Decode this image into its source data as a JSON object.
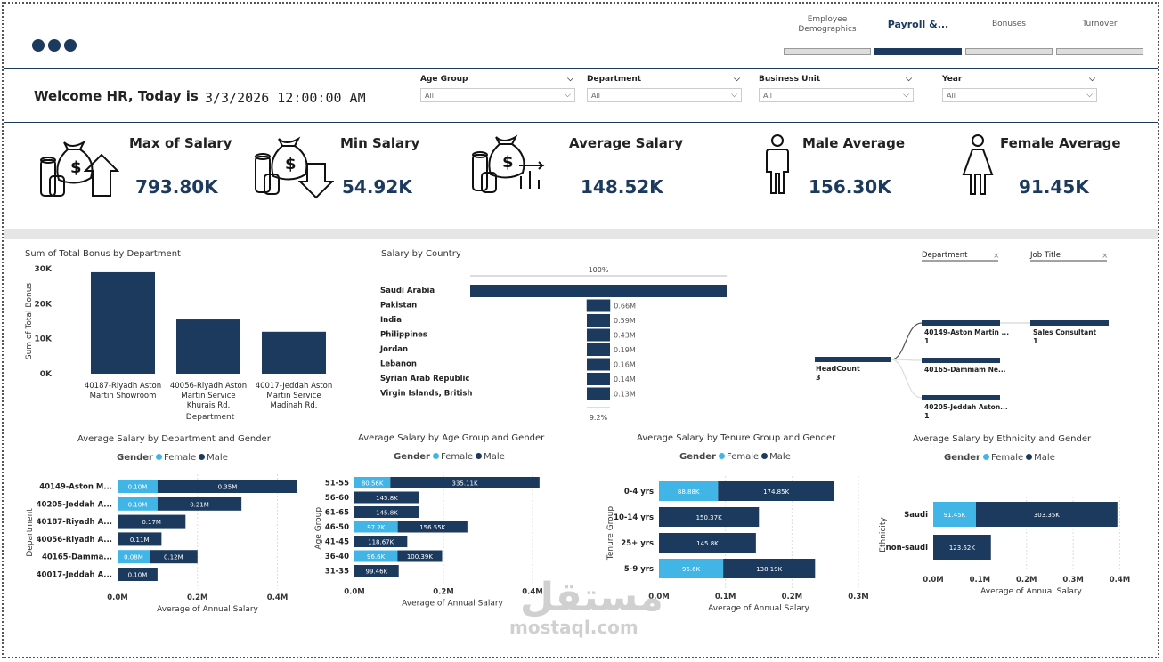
{
  "tabs": [
    {
      "label": "Employee\nDemographics",
      "active": false
    },
    {
      "label": "Payroll &...",
      "active": true
    },
    {
      "label": "Bonuses",
      "active": false
    },
    {
      "label": "Turnover",
      "active": false
    }
  ],
  "header": {
    "welcome": "Welcome HR, Today is",
    "datetime": "3/3/2026 12:00:00 AM"
  },
  "filters": [
    {
      "label": "Age Group",
      "value": "All"
    },
    {
      "label": "Department",
      "value": "All"
    },
    {
      "label": "Business Unit",
      "value": "All"
    },
    {
      "label": "Year",
      "value": "All"
    }
  ],
  "kpis": [
    {
      "title": "Max of Salary",
      "value": "793.80K",
      "icon": "money-bag-up-icon"
    },
    {
      "title": "Min Salary",
      "value": "54.92K",
      "icon": "money-bag-down-icon"
    },
    {
      "title": "Average Salary",
      "value": "148.52K",
      "icon": "money-bag-chart-icon"
    },
    {
      "title": "Male Average",
      "value": "156.30K",
      "icon": "male-person-icon"
    },
    {
      "title": "Female Average",
      "value": "91.45K",
      "icon": "female-person-icon"
    }
  ],
  "colors": {
    "navy": "#1c3a5e",
    "light": "#41b6e6"
  },
  "chart_data": [
    {
      "id": "bonus",
      "type": "bar",
      "title": "Sum of Total Bonus by Department",
      "xlabel": "Department",
      "ylabel": "Sum of Total Bonus",
      "ylim": [
        0,
        30000
      ],
      "yticks": [
        "0K",
        "10K",
        "20K",
        "30K"
      ],
      "categories": [
        "40187-Riyadh Aston Martin Showroom",
        "40056-Riyadh Aston Martin Service Khurais Rd.",
        "40017-Jeddah Aston Martin Service Madinah Rd."
      ],
      "category_lines": [
        [
          "40187-Riyadh Aston",
          "Martin Showroom"
        ],
        [
          "40056-Riyadh Aston",
          "Martin Service",
          "Khurais Rd."
        ],
        [
          "40017-Jeddah Aston",
          "Martin Service",
          "Madinah Rd."
        ]
      ],
      "values": [
        29000,
        15500,
        12000
      ]
    },
    {
      "id": "country",
      "type": "bar",
      "title": "Salary by Country",
      "top_label": "100%",
      "bottom_label": "9.2%",
      "categories": [
        "Saudi Arabia",
        "Pakistan",
        "India",
        "Philippines",
        "Jordan",
        "Lebanon",
        "Syrian Arab Republic",
        "Virgin Islands, British"
      ],
      "values": [
        7.17,
        0.66,
        0.59,
        0.43,
        0.19,
        0.16,
        0.14,
        0.13
      ],
      "labels": [
        "",
        "0.66M",
        "0.59M",
        "0.43M",
        "0.19M",
        "0.16M",
        "0.14M",
        "0.13M"
      ]
    },
    {
      "id": "dept_gender",
      "type": "bar",
      "title": "Average Salary by Department and Gender",
      "legend_title": "Gender",
      "series_names": [
        "Female",
        "Male"
      ],
      "xlabel": "Average of Annual Salary",
      "ylabel": "Department",
      "xlim": [
        0,
        0.45
      ],
      "xticks": [
        {
          "v": 0,
          "t": "0.0M"
        },
        {
          "v": 0.2,
          "t": "0.2M"
        },
        {
          "v": 0.4,
          "t": "0.4M"
        }
      ],
      "categories": [
        "40149-Aston M...",
        "40205-Jeddah A...",
        "40187-Riyadh A...",
        "40056-Riyadh A...",
        "40165-Damma...",
        "40017-Jeddah A..."
      ],
      "series": [
        {
          "name": "Female",
          "values": [
            0.1,
            0.1,
            0,
            0,
            0.08,
            0
          ],
          "labels": [
            "0.10M",
            "0.10M",
            "",
            "",
            "0.08M",
            ""
          ]
        },
        {
          "name": "Male",
          "values": [
            0.35,
            0.21,
            0.17,
            0.11,
            0.12,
            0.1
          ],
          "labels": [
            "0.35M",
            "0.21M",
            "0.17M",
            "0.11M",
            "0.12M",
            "0.10M"
          ]
        }
      ]
    },
    {
      "id": "age_gender",
      "type": "bar",
      "title": "Average Salary by Age Group and Gender",
      "legend_title": "Gender",
      "series_names": [
        "Female",
        "Male"
      ],
      "xlabel": "Average of Annual Salary",
      "ylabel": "Age Group",
      "xlim": [
        0,
        0.44
      ],
      "xticks": [
        {
          "v": 0,
          "t": "0.0M"
        },
        {
          "v": 0.2,
          "t": "0.2M"
        },
        {
          "v": 0.4,
          "t": "0.4M"
        }
      ],
      "categories": [
        "51-55",
        "56-60",
        "61-65",
        "46-50",
        "41-45",
        "36-40",
        "31-35"
      ],
      "series": [
        {
          "name": "Female",
          "values": [
            0.08056,
            0,
            0,
            0.0972,
            0,
            0.0966,
            0
          ],
          "labels": [
            "80.56K",
            "",
            "",
            "97.2K",
            "",
            "96.6K",
            ""
          ]
        },
        {
          "name": "Male",
          "values": [
            0.33511,
            0.1458,
            0.1458,
            0.15655,
            0.11867,
            0.10039,
            0.09946
          ],
          "labels": [
            "335.11K",
            "145.8K",
            "145.8K",
            "156.55K",
            "118.67K",
            "100.39K",
            "99.46K"
          ]
        }
      ]
    },
    {
      "id": "tenure_gender",
      "type": "bar",
      "title": "Average Salary by Tenure Group and Gender",
      "legend_title": "Gender",
      "series_names": [
        "Female",
        "Male"
      ],
      "xlabel": "Average of Annual Salary",
      "ylabel": "Tenure Group",
      "xlim": [
        0,
        0.3
      ],
      "xticks": [
        {
          "v": 0,
          "t": "0.0M"
        },
        {
          "v": 0.1,
          "t": "0.1M"
        },
        {
          "v": 0.2,
          "t": "0.2M"
        },
        {
          "v": 0.3,
          "t": "0.3M"
        }
      ],
      "categories": [
        "0-4 yrs",
        "10-14 yrs",
        "25+ yrs",
        "5-9 yrs"
      ],
      "series": [
        {
          "name": "Female",
          "values": [
            0.08888,
            0,
            0,
            0.0966
          ],
          "labels": [
            "88.88K",
            "",
            "",
            "96.6K"
          ]
        },
        {
          "name": "Male",
          "values": [
            0.17485,
            0.15037,
            0.1458,
            0.13819
          ],
          "labels": [
            "174.85K",
            "150.37K",
            "145.8K",
            "138.19K"
          ]
        }
      ]
    },
    {
      "id": "ethnicity_gender",
      "type": "bar",
      "title": "Average Salary by Ethnicity and Gender",
      "legend_title": "Gender",
      "series_names": [
        "Female",
        "Male"
      ],
      "xlabel": "Average of Annual Salary",
      "ylabel": "Ethnicity",
      "xlim": [
        0,
        0.42
      ],
      "xticks": [
        {
          "v": 0,
          "t": "0.0M"
        },
        {
          "v": 0.1,
          "t": "0.1M"
        },
        {
          "v": 0.2,
          "t": "0.2M"
        },
        {
          "v": 0.3,
          "t": "0.3M"
        },
        {
          "v": 0.4,
          "t": "0.4M"
        }
      ],
      "categories": [
        "Saudi",
        "non-saudi"
      ],
      "series": [
        {
          "name": "Female",
          "values": [
            0.09145,
            0
          ],
          "labels": [
            "91.45K",
            ""
          ]
        },
        {
          "name": "Male",
          "values": [
            0.30335,
            0.12362
          ],
          "labels": [
            "303.35K",
            "123.62K"
          ]
        }
      ]
    }
  ],
  "decomp": {
    "headers": [
      "Department",
      "Job Title"
    ],
    "root": {
      "label": "HeadCount",
      "value": "3"
    },
    "departments": [
      {
        "label": "40149-Aston Martin ...",
        "value": "1"
      },
      {
        "label": "40165-Dammam Ne...",
        "value": ""
      },
      {
        "label": "40205-Jeddah Aston...",
        "value": "1"
      }
    ],
    "job": {
      "label": "Sales Consultant",
      "value": "1"
    }
  },
  "watermark": {
    "arabic": "مستقل",
    "latin": "mostaql.com"
  }
}
